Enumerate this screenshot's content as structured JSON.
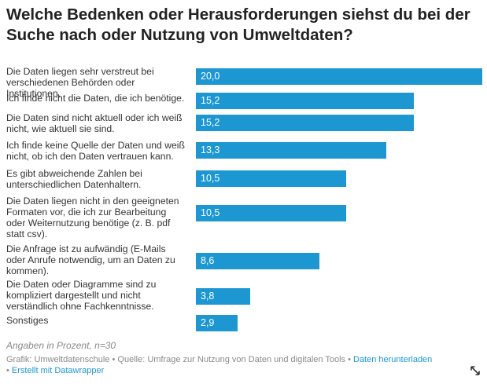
{
  "title": "Welche Bedenken oder Herausforderungen siehst du bei der Suche nach oder Nutzung von Umweltdaten?",
  "chart_data": {
    "type": "bar",
    "orientation": "horizontal",
    "categories": [
      "Die Daten liegen sehr verstreut bei verschiedenen Behörden oder Institutionen.",
      "Ich finde nicht die Daten, die ich benötige.",
      "Die Daten sind nicht aktuell oder ich weiß nicht, wie aktuell sie sind.",
      "Ich finde keine Quelle der Daten und weiß nicht, ob ich den Daten vertrauen kann.",
      "Es gibt abweichende Zahlen bei unterschiedlichen Datenhaltern.",
      "Die Daten liegen nicht in den geeigneten Formaten vor, die ich zur Bearbeitung oder Weiternutzung benötige (z. B. pdf statt csv).",
      "Die Anfrage ist zu aufwändig (E-Mails oder Anrufe notwendig, um an Daten zu kommen).",
      "Die Daten oder Diagramme sind zu kompliziert dargestellt und nicht verständlich ohne Fachkenntnisse.",
      "Sonstiges"
    ],
    "values": [
      20.0,
      15.2,
      15.2,
      13.3,
      10.5,
      10.5,
      8.6,
      3.8,
      2.9
    ],
    "value_labels": [
      "20,0",
      "15,2",
      "15,2",
      "13,3",
      "10,5",
      "10,5",
      "8,6",
      "3,8",
      "2,9"
    ],
    "xlim": [
      0,
      20
    ],
    "bar_color": "#1d97d1",
    "grid": false,
    "legend": "none"
  },
  "note": "Angaben in Prozent, n=30",
  "footer": {
    "source": "Grafik: Umweltdatenschule • Quelle: Umfrage zur Nutzung von Daten und digitalen Tools • ",
    "download": "Daten herunterladen",
    "sep": "• ",
    "made_with": "Erstellt mit Datawrapper"
  },
  "icons": {
    "expand": "expand-icon"
  }
}
